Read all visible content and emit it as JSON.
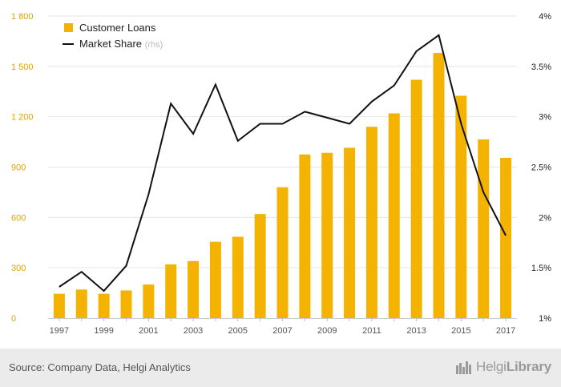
{
  "colors": {
    "bar": "#f5b301",
    "line": "#111111",
    "left_tick": "#e1a300",
    "right_tick": "#222222",
    "x_tick": "#555555",
    "grid": "#e5e5e5"
  },
  "chart_data": {
    "type": "bar",
    "title": "",
    "legend_position": "top-left",
    "grid": true,
    "categories": [
      "1997",
      "1998",
      "1999",
      "2000",
      "2001",
      "2002",
      "2003",
      "2004",
      "2005",
      "2006",
      "2007",
      "2008",
      "2009",
      "2010",
      "2011",
      "2012",
      "2013",
      "2014",
      "2015",
      "2016",
      "2017"
    ],
    "x_tick_labels": [
      "1997",
      "1999",
      "2001",
      "2003",
      "2005",
      "2007",
      "2009",
      "2011",
      "2013",
      "2015",
      "2017"
    ],
    "series": [
      {
        "name": "Customer Loans",
        "type": "bar",
        "axis": "left",
        "values": [
          145,
          170,
          145,
          165,
          200,
          320,
          340,
          455,
          485,
          620,
          780,
          975,
          985,
          1015,
          1140,
          1220,
          1420,
          1580,
          1325,
          1065,
          955
        ]
      },
      {
        "name": "Market Share",
        "name_suffix": "(rhs)",
        "type": "line",
        "axis": "right",
        "values": [
          1.31,
          1.46,
          1.27,
          1.52,
          2.23,
          3.13,
          2.83,
          3.32,
          2.76,
          2.93,
          2.93,
          3.05,
          2.99,
          2.93,
          3.15,
          3.31,
          3.65,
          3.81,
          2.93,
          2.25,
          1.82
        ]
      }
    ],
    "y_left": {
      "lim": [
        0,
        1800
      ],
      "ticks": [
        0,
        300,
        600,
        900,
        1200,
        1500,
        1800
      ],
      "tick_labels": [
        "0",
        "300",
        "600",
        "900",
        "1 200",
        "1 500",
        "1 800"
      ]
    },
    "y_right": {
      "lim": [
        1,
        4
      ],
      "ticks": [
        1,
        1.5,
        2,
        2.5,
        3,
        3.5,
        4
      ],
      "tick_labels": [
        "1%",
        "1.5%",
        "2%",
        "2.5%",
        "3%",
        "3.5%",
        "4%"
      ]
    }
  },
  "footer": {
    "source": "Source: Company Data, Helgi Analytics",
    "logo_text_regular": "Helgi",
    "logo_text_bold": "Library",
    "logo_icon": "helgi-library-logo-icon"
  }
}
